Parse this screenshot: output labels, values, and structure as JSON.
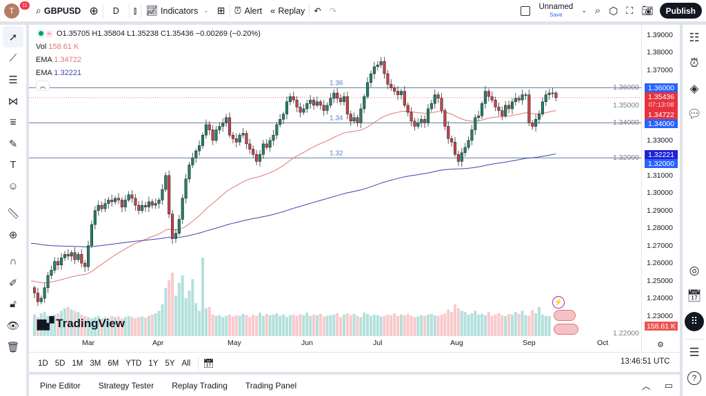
{
  "topbar": {
    "avatar_letter": "T",
    "notifications": "11",
    "symbol": "GBPUSD",
    "interval": "D",
    "indicators": "Indicators",
    "alert": "Alert",
    "replay": "Replay",
    "layout_name": "Unnamed",
    "layout_status": "Save",
    "publish": "Publish"
  },
  "legend": {
    "ohlc": "O1.35705 H1.35804 L1.35238 C1.35436 −0.00269 (−0.20%)",
    "vol_label": "Vol",
    "vol_value": "158.61 K",
    "ema1_label": "EMA",
    "ema1_value": "1.34722",
    "ema2_label": "EMA",
    "ema2_value": "1.32221"
  },
  "colors": {
    "up": "#22806a",
    "down": "#c4424b",
    "vol_up": "#b3e0dc",
    "vol_down": "#f8c9cc",
    "ema_fast": "#e57373",
    "ema_slow": "#3f3fb0",
    "hline": "#5d7898",
    "accent": "#2962ff"
  },
  "price_axis": {
    "ticks": [
      "1.39000",
      "1.38000",
      "1.37000",
      "1.36000",
      "1.35000",
      "1.34000",
      "1.33000",
      "1.32000",
      "1.31000",
      "1.30000",
      "1.29000",
      "1.28000",
      "1.27000",
      "1.26000",
      "1.25000",
      "1.24000",
      "1.23000",
      "1.22000"
    ],
    "labels": {
      "level_136": "1.36000",
      "last_price": "1.35436",
      "countdown": "07:13:08",
      "ema_fast": "1.34722",
      "level_134": "1.34000",
      "ema_slow": "1.32221",
      "level_132": "1.32000",
      "volume": "158.61 K"
    }
  },
  "horizontal_lines": [
    {
      "price": 1.36,
      "label": "1.36"
    },
    {
      "price": 1.34,
      "label": "1.34"
    },
    {
      "price": 1.32,
      "label": "1.32"
    }
  ],
  "time_axis": {
    "months": [
      "Mar",
      "Apr",
      "May",
      "Jun",
      "Jul",
      "Aug",
      "Sep",
      "Oct"
    ]
  },
  "chart_data": {
    "type": "candlestick",
    "symbol": "GBPUSD",
    "interval": "D",
    "last": {
      "open": 1.35705,
      "high": 1.35804,
      "low": 1.35238,
      "close": 1.35436
    },
    "closes": [
      1.243,
      1.238,
      1.24,
      1.246,
      1.253,
      1.256,
      1.261,
      1.259,
      1.263,
      1.265,
      1.264,
      1.266,
      1.262,
      1.265,
      1.26,
      1.258,
      1.27,
      1.282,
      1.29,
      1.293,
      1.291,
      1.294,
      1.296,
      1.295,
      1.297,
      1.296,
      1.292,
      1.296,
      1.299,
      1.297,
      1.293,
      1.29,
      1.293,
      1.292,
      1.295,
      1.293,
      1.294,
      1.296,
      1.302,
      1.31,
      1.288,
      1.274,
      1.277,
      1.285,
      1.297,
      1.308,
      1.316,
      1.32,
      1.324,
      1.327,
      1.333,
      1.339,
      1.336,
      1.33,
      1.336,
      1.338,
      1.34,
      1.343,
      1.333,
      1.331,
      1.329,
      1.333,
      1.334,
      1.328,
      1.325,
      1.322,
      1.318,
      1.322,
      1.328,
      1.326,
      1.33,
      1.333,
      1.339,
      1.342,
      1.345,
      1.352,
      1.355,
      1.353,
      1.349,
      1.346,
      1.348,
      1.351,
      1.353,
      1.35,
      1.352,
      1.35,
      1.347,
      1.35,
      1.354,
      1.357,
      1.354,
      1.352,
      1.355,
      1.345,
      1.341,
      1.343,
      1.34,
      1.348,
      1.355,
      1.363,
      1.368,
      1.372,
      1.373,
      1.375,
      1.368,
      1.362,
      1.36,
      1.358,
      1.356,
      1.358,
      1.35,
      1.346,
      1.341,
      1.338,
      1.34,
      1.342,
      1.34,
      1.348,
      1.351,
      1.356,
      1.354,
      1.347,
      1.338,
      1.331,
      1.329,
      1.322,
      1.318,
      1.323,
      1.326,
      1.33,
      1.336,
      1.343,
      1.344,
      1.351,
      1.358,
      1.355,
      1.353,
      1.349,
      1.347,
      1.344,
      1.35,
      1.348,
      1.352,
      1.354,
      1.353,
      1.356,
      1.356,
      1.34,
      1.338,
      1.342,
      1.345,
      1.352,
      1.356,
      1.357,
      1.35705,
      1.35436
    ],
    "volumes_k": [
      170,
      150,
      180,
      190,
      160,
      150,
      170,
      180,
      200,
      220,
      230,
      210,
      200,
      190,
      170,
      160,
      150,
      140,
      150,
      160,
      140,
      150,
      145,
      160,
      150,
      155,
      140,
      150,
      160,
      150,
      140,
      150,
      155,
      145,
      160,
      170,
      180,
      200,
      250,
      380,
      440,
      500,
      320,
      420,
      480,
      300,
      360,
      450,
      260,
      200,
      620,
      220,
      230,
      170,
      160,
      165,
      150,
      160,
      170,
      155,
      165,
      160,
      175,
      165,
      150,
      170,
      160,
      185,
      160,
      175,
      165,
      170,
      180,
      160,
      170,
      150,
      165,
      170,
      160,
      175,
      165,
      185,
      160,
      170,
      165,
      175,
      155,
      160,
      165,
      170,
      180,
      150,
      170,
      180,
      165,
      175,
      160,
      150,
      185,
      175,
      160,
      170,
      165,
      155,
      160,
      170,
      165,
      180,
      160,
      170,
      165,
      175,
      160,
      150,
      155,
      165,
      160,
      170,
      175,
      165,
      160,
      170,
      180,
      210,
      190,
      250,
      220,
      200,
      190,
      170,
      180,
      200,
      170,
      175,
      165,
      190,
      160,
      170,
      180,
      165,
      160,
      175,
      170,
      190,
      175,
      200,
      165,
      160,
      205,
      180,
      230,
      170,
      160,
      158.61
    ]
  },
  "bottom_bar": {
    "ranges": [
      "1D",
      "5D",
      "1M",
      "3M",
      "6M",
      "YTD",
      "1Y",
      "5Y",
      "All"
    ],
    "clock": "13:46:51 UTC"
  },
  "bottom_panel": {
    "tabs": [
      "Pine Editor",
      "Strategy Tester",
      "Replay Trading",
      "Trading Panel"
    ]
  },
  "watermark": "TradingView"
}
